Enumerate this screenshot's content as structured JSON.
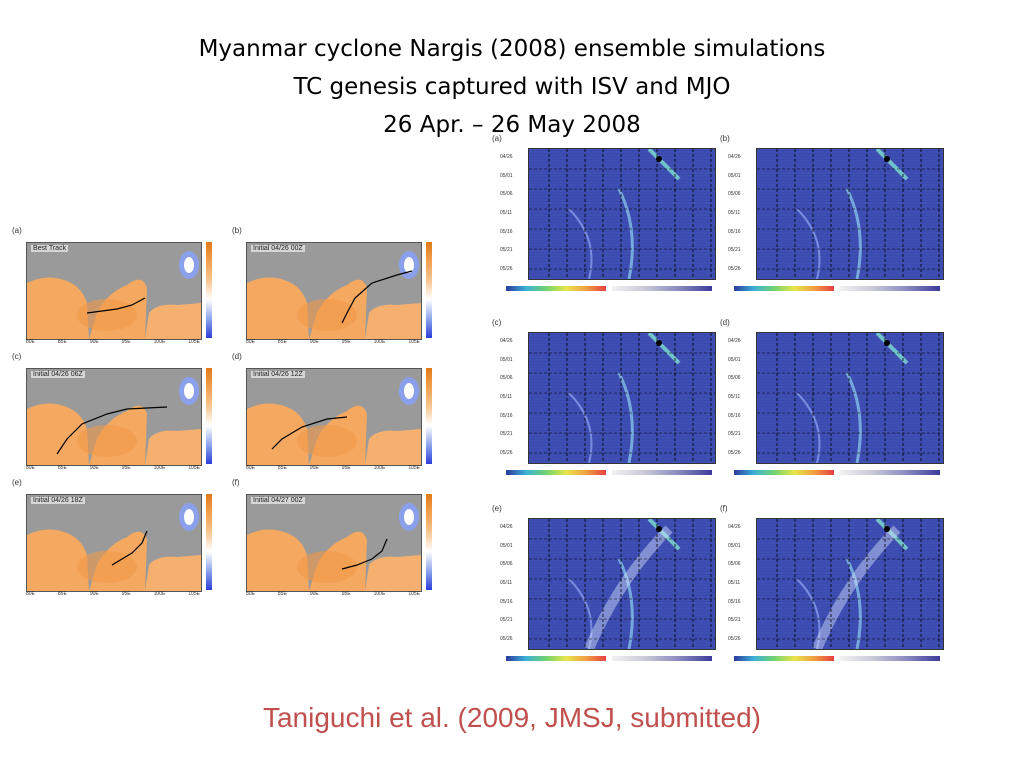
{
  "slide": {
    "title_lines": [
      "Myanmar cyclone Nargis (2008) ensemble simulations",
      "TC genesis captured with ISV and MJO",
      "26 Apr. – 26 May 2008"
    ],
    "citation": "Taniguchi et al. (2009, JMSJ, submitted)"
  },
  "left_figure": {
    "panels": [
      {
        "label": "(a)",
        "inset": "Best Track"
      },
      {
        "label": "(b)",
        "inset": "Initial 04/26 00Z"
      },
      {
        "label": "(c)",
        "inset": "Initial 04/26 06Z"
      },
      {
        "label": "(d)",
        "inset": "Initial 04/26 12Z"
      },
      {
        "label": "(e)",
        "inset": "Initial 04/26 18Z"
      },
      {
        "label": "(f)",
        "inset": "Initial 04/27 00Z"
      }
    ],
    "lon_ticks": [
      "80E",
      "85E",
      "90E",
      "95E",
      "100E",
      "105E"
    ]
  },
  "right_figure": {
    "panels": [
      {
        "label": "(a)"
      },
      {
        "label": "(b)"
      },
      {
        "label": "(c)"
      },
      {
        "label": "(d)"
      },
      {
        "label": "(e)"
      },
      {
        "label": "(f)"
      }
    ],
    "date_ticks": [
      "04/26",
      "05/01",
      "05/06",
      "05/11",
      "05/16",
      "05/21",
      "05/26"
    ]
  },
  "colors": {
    "citation": "#c0504d",
    "sst_warm": "#f4a860",
    "land": "#9a9a9a",
    "hov_bg": "#3b4bb0"
  }
}
